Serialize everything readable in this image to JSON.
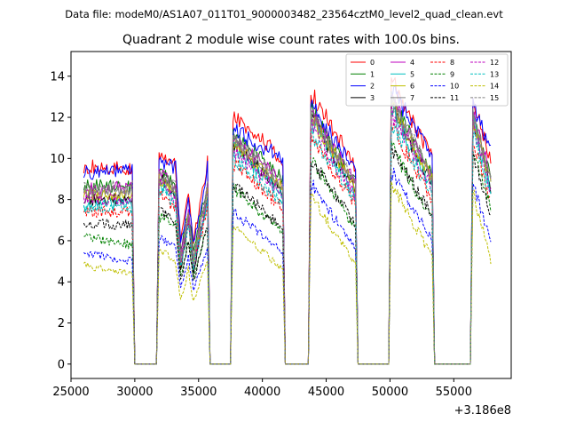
{
  "suptitle": "Data file: modeM0/AS1A07_011T01_9000003482_23564cztM0_level2_quad_clean.evt",
  "chart_data": {
    "type": "line",
    "title": "Quadrant 2 module wise count rates with 100.0s bins.",
    "xlabel": "",
    "ylabel": "",
    "x_offset_label": "+3.186e8",
    "xlim": [
      25000,
      59500
    ],
    "ylim": [
      -0.7,
      15.2
    ],
    "xticks": [
      25000,
      30000,
      35000,
      40000,
      45000,
      50000,
      55000
    ],
    "yticks": [
      0,
      2,
      4,
      6,
      8,
      10,
      12,
      14
    ],
    "legend_position": "top-right",
    "x_knots": [
      26000,
      29800,
      30000,
      31700,
      31900,
      33200,
      33600,
      34200,
      34600,
      35700,
      35900,
      37500,
      37700,
      41600,
      41800,
      43600,
      43800,
      47300,
      47500,
      49900,
      50100,
      53300,
      53500,
      56300,
      56500,
      57900
    ],
    "series": [
      {
        "name": "0",
        "color": "#ff0000",
        "dash": "solid",
        "values": [
          9.6,
          9.5,
          0,
          0,
          10.2,
          9.6,
          6.0,
          8.2,
          6.0,
          9.8,
          0,
          0,
          12.0,
          10.0,
          0,
          0,
          13.2,
          9.6,
          0,
          0,
          13.8,
          10.0,
          0,
          0,
          13.0,
          9.8
        ]
      },
      {
        "name": "1",
        "color": "#008000",
        "dash": "solid",
        "values": [
          8.7,
          8.6,
          0,
          0,
          9.5,
          8.8,
          5.5,
          7.6,
          5.5,
          8.8,
          0,
          0,
          11.2,
          9.0,
          0,
          0,
          12.4,
          8.8,
          0,
          0,
          12.8,
          9.2,
          0,
          0,
          12.2,
          9.0
        ]
      },
      {
        "name": "2",
        "color": "#0000ff",
        "dash": "solid",
        "values": [
          9.3,
          9.4,
          0,
          0,
          9.8,
          9.6,
          5.8,
          8.0,
          5.8,
          9.6,
          0,
          0,
          11.4,
          10.0,
          0,
          0,
          12.6,
          9.4,
          0,
          0,
          13.4,
          10.2,
          0,
          0,
          12.6,
          10.4
        ]
      },
      {
        "name": "3",
        "color": "#000000",
        "dash": "solid",
        "values": [
          8.0,
          8.0,
          0,
          0,
          9.2,
          8.2,
          4.5,
          7.0,
          4.5,
          8.2,
          0,
          0,
          10.8,
          8.4,
          0,
          0,
          12.0,
          8.4,
          0,
          0,
          12.6,
          8.8,
          0,
          0,
          11.8,
          8.6
        ]
      },
      {
        "name": "4",
        "color": "#bf00bf",
        "dash": "solid",
        "values": [
          8.5,
          8.6,
          0,
          0,
          9.3,
          8.6,
          5.2,
          7.4,
          5.2,
          8.6,
          0,
          0,
          11.0,
          8.8,
          0,
          0,
          12.2,
          8.8,
          0,
          0,
          12.8,
          9.2,
          0,
          0,
          12.2,
          9.2
        ]
      },
      {
        "name": "5",
        "color": "#00bfbf",
        "dash": "solid",
        "values": [
          7.8,
          7.8,
          0,
          0,
          8.8,
          8.0,
          4.8,
          7.0,
          4.8,
          8.0,
          0,
          0,
          10.6,
          8.2,
          0,
          0,
          11.8,
          8.2,
          0,
          0,
          12.4,
          8.6,
          0,
          0,
          11.8,
          8.4
        ]
      },
      {
        "name": "6",
        "color": "#bfbf00",
        "dash": "solid",
        "values": [
          8.2,
          8.3,
          0,
          0,
          9.0,
          8.4,
          5.0,
          7.2,
          5.0,
          8.4,
          0,
          0,
          10.8,
          8.6,
          0,
          0,
          12.0,
          8.6,
          0,
          0,
          12.6,
          9.0,
          0,
          0,
          12.0,
          8.8
        ]
      },
      {
        "name": "7",
        "color": "#808080",
        "dash": "solid",
        "values": [
          8.4,
          8.4,
          0,
          0,
          9.1,
          8.5,
          5.1,
          7.3,
          5.1,
          8.5,
          0,
          0,
          11.0,
          8.7,
          0,
          0,
          12.1,
          8.7,
          0,
          0,
          12.7,
          9.1,
          0,
          0,
          12.1,
          8.9
        ]
      },
      {
        "name": "8",
        "color": "#ff0000",
        "dash": "dashed",
        "values": [
          7.4,
          7.4,
          0,
          0,
          8.2,
          7.6,
          4.6,
          6.8,
          4.6,
          7.6,
          0,
          0,
          9.8,
          7.6,
          0,
          0,
          11.0,
          7.8,
          0,
          0,
          11.6,
          8.0,
          0,
          0,
          11.0,
          7.8
        ]
      },
      {
        "name": "9",
        "color": "#008000",
        "dash": "dashed",
        "values": [
          6.2,
          5.8,
          0,
          0,
          7.2,
          6.8,
          4.2,
          6.0,
          4.2,
          6.8,
          0,
          0,
          8.6,
          6.4,
          0,
          0,
          10.0,
          6.6,
          0,
          0,
          10.6,
          7.0,
          0,
          0,
          10.4,
          7.6
        ]
      },
      {
        "name": "10",
        "color": "#0000ff",
        "dash": "dashed",
        "values": [
          5.4,
          5.0,
          0,
          0,
          6.2,
          5.6,
          3.6,
          5.2,
          3.6,
          5.6,
          0,
          0,
          7.4,
          5.4,
          0,
          0,
          8.8,
          5.6,
          0,
          0,
          9.4,
          6.0,
          0,
          0,
          8.8,
          6.0
        ]
      },
      {
        "name": "11",
        "color": "#000000",
        "dash": "dashed",
        "values": [
          6.8,
          6.8,
          0,
          0,
          7.6,
          6.8,
          4.0,
          6.0,
          4.0,
          6.8,
          0,
          0,
          8.8,
          6.6,
          0,
          0,
          10.0,
          6.8,
          0,
          0,
          10.6,
          7.2,
          0,
          0,
          10.2,
          7.2
        ]
      },
      {
        "name": "12",
        "color": "#bf00bf",
        "dash": "dashed",
        "values": [
          8.0,
          8.0,
          0,
          0,
          8.8,
          8.0,
          4.8,
          7.0,
          4.8,
          8.0,
          0,
          0,
          10.4,
          8.2,
          0,
          0,
          11.6,
          8.2,
          0,
          0,
          12.2,
          8.6,
          0,
          0,
          11.6,
          8.4
        ]
      },
      {
        "name": "13",
        "color": "#00bfbf",
        "dash": "dashed",
        "values": [
          7.6,
          7.6,
          0,
          0,
          8.4,
          7.8,
          4.6,
          6.8,
          4.6,
          7.8,
          0,
          0,
          10.0,
          7.8,
          0,
          0,
          11.2,
          8.0,
          0,
          0,
          11.8,
          8.2,
          0,
          0,
          11.2,
          8.0
        ]
      },
      {
        "name": "14",
        "color": "#bfbf00",
        "dash": "dashed",
        "values": [
          4.8,
          4.4,
          0,
          0,
          5.6,
          5.0,
          3.0,
          4.6,
          3.0,
          5.0,
          0,
          0,
          6.8,
          4.6,
          0,
          0,
          8.2,
          4.8,
          0,
          0,
          8.8,
          5.2,
          0,
          0,
          8.4,
          5.0
        ]
      },
      {
        "name": "15",
        "color": "#808080",
        "dash": "dashed",
        "values": [
          8.6,
          8.6,
          0,
          0,
          9.2,
          8.6,
          5.2,
          7.4,
          5.2,
          8.6,
          0,
          0,
          11.0,
          8.8,
          0,
          0,
          12.2,
          8.8,
          0,
          0,
          12.8,
          9.2,
          0,
          0,
          12.2,
          9.0
        ]
      }
    ]
  }
}
